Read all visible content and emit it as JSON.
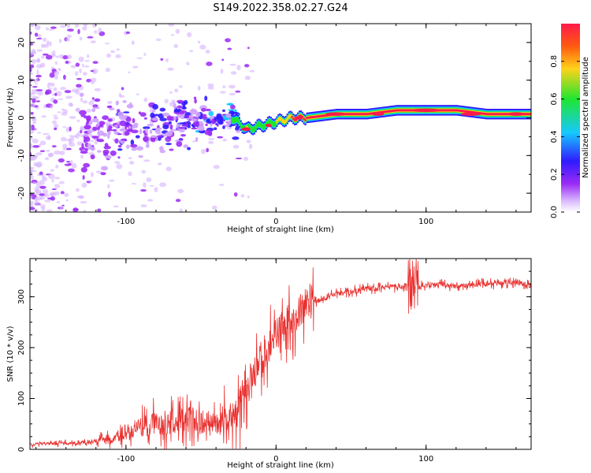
{
  "title": "S149.2022.358.02.27.G24",
  "colors": {
    "snr_line": "#e8302e",
    "colormap": [
      "#ffffff",
      "#9b2bf5",
      "#2f1bff",
      "#16c8ff",
      "#1fe62f",
      "#ffd21a",
      "#ff5a10",
      "#ff1a4a"
    ]
  },
  "chart_data": [
    {
      "type": "heatmap",
      "title": "",
      "xlabel": "Height of straight line (km)",
      "ylabel": "Frequency (Hz)",
      "xlim": [
        -164,
        170
      ],
      "ylim": [
        -25,
        25
      ],
      "x_ticks": [
        -100,
        0,
        100
      ],
      "y_ticks": [
        -20,
        -10,
        0,
        10,
        20
      ],
      "colorbar": {
        "label": "Normalized spectral amplitude",
        "range": [
          0.0,
          1.0
        ],
        "ticks": [
          0.0,
          0.2,
          0.4,
          0.6,
          0.8
        ]
      },
      "ridge_x": [
        -125,
        -110,
        -95,
        -80,
        -65,
        -50,
        -40,
        -30,
        -20,
        -10,
        0,
        10,
        20,
        40,
        60,
        80,
        100,
        120,
        140,
        160,
        170
      ],
      "ridge_frequency": [
        -5,
        -4,
        -3,
        -3,
        -2,
        -1,
        0,
        0,
        -3,
        -2,
        -1,
        0,
        0,
        1,
        1,
        2,
        2,
        2,
        1,
        1,
        1
      ],
      "ridge_amplitude": [
        0.2,
        0.25,
        0.25,
        0.3,
        0.3,
        0.4,
        0.5,
        0.55,
        0.7,
        0.6,
        0.7,
        0.85,
        0.9,
        0.95,
        0.95,
        0.95,
        1.0,
        0.95,
        0.9,
        0.95,
        0.9
      ]
    },
    {
      "type": "line",
      "title": "",
      "xlabel": "Height of straight line (km)",
      "ylabel": "SNR (10 * v/v)",
      "xlim": [
        -164,
        170
      ],
      "ylim": [
        0,
        375
      ],
      "x_ticks": [
        -100,
        0,
        100
      ],
      "y_ticks": [
        0,
        100,
        200,
        300
      ],
      "series": [
        {
          "x": [
            -164,
            -140,
            -120,
            -110,
            -100,
            -90,
            -80,
            -70,
            -60,
            -50,
            -40,
            -30,
            -25,
            -20,
            -15,
            -10,
            -5,
            0,
            5,
            10,
            15,
            20,
            25,
            30,
            40,
            50,
            60,
            70,
            80,
            90,
            95,
            100,
            110,
            120,
            140,
            160,
            170
          ],
          "y": [
            10,
            12,
            15,
            20,
            35,
            45,
            50,
            55,
            60,
            55,
            50,
            70,
            80,
            120,
            140,
            180,
            200,
            230,
            245,
            255,
            265,
            280,
            290,
            295,
            305,
            310,
            315,
            318,
            320,
            322,
            318,
            322,
            325,
            320,
            325,
            328,
            322
          ]
        }
      ]
    }
  ]
}
